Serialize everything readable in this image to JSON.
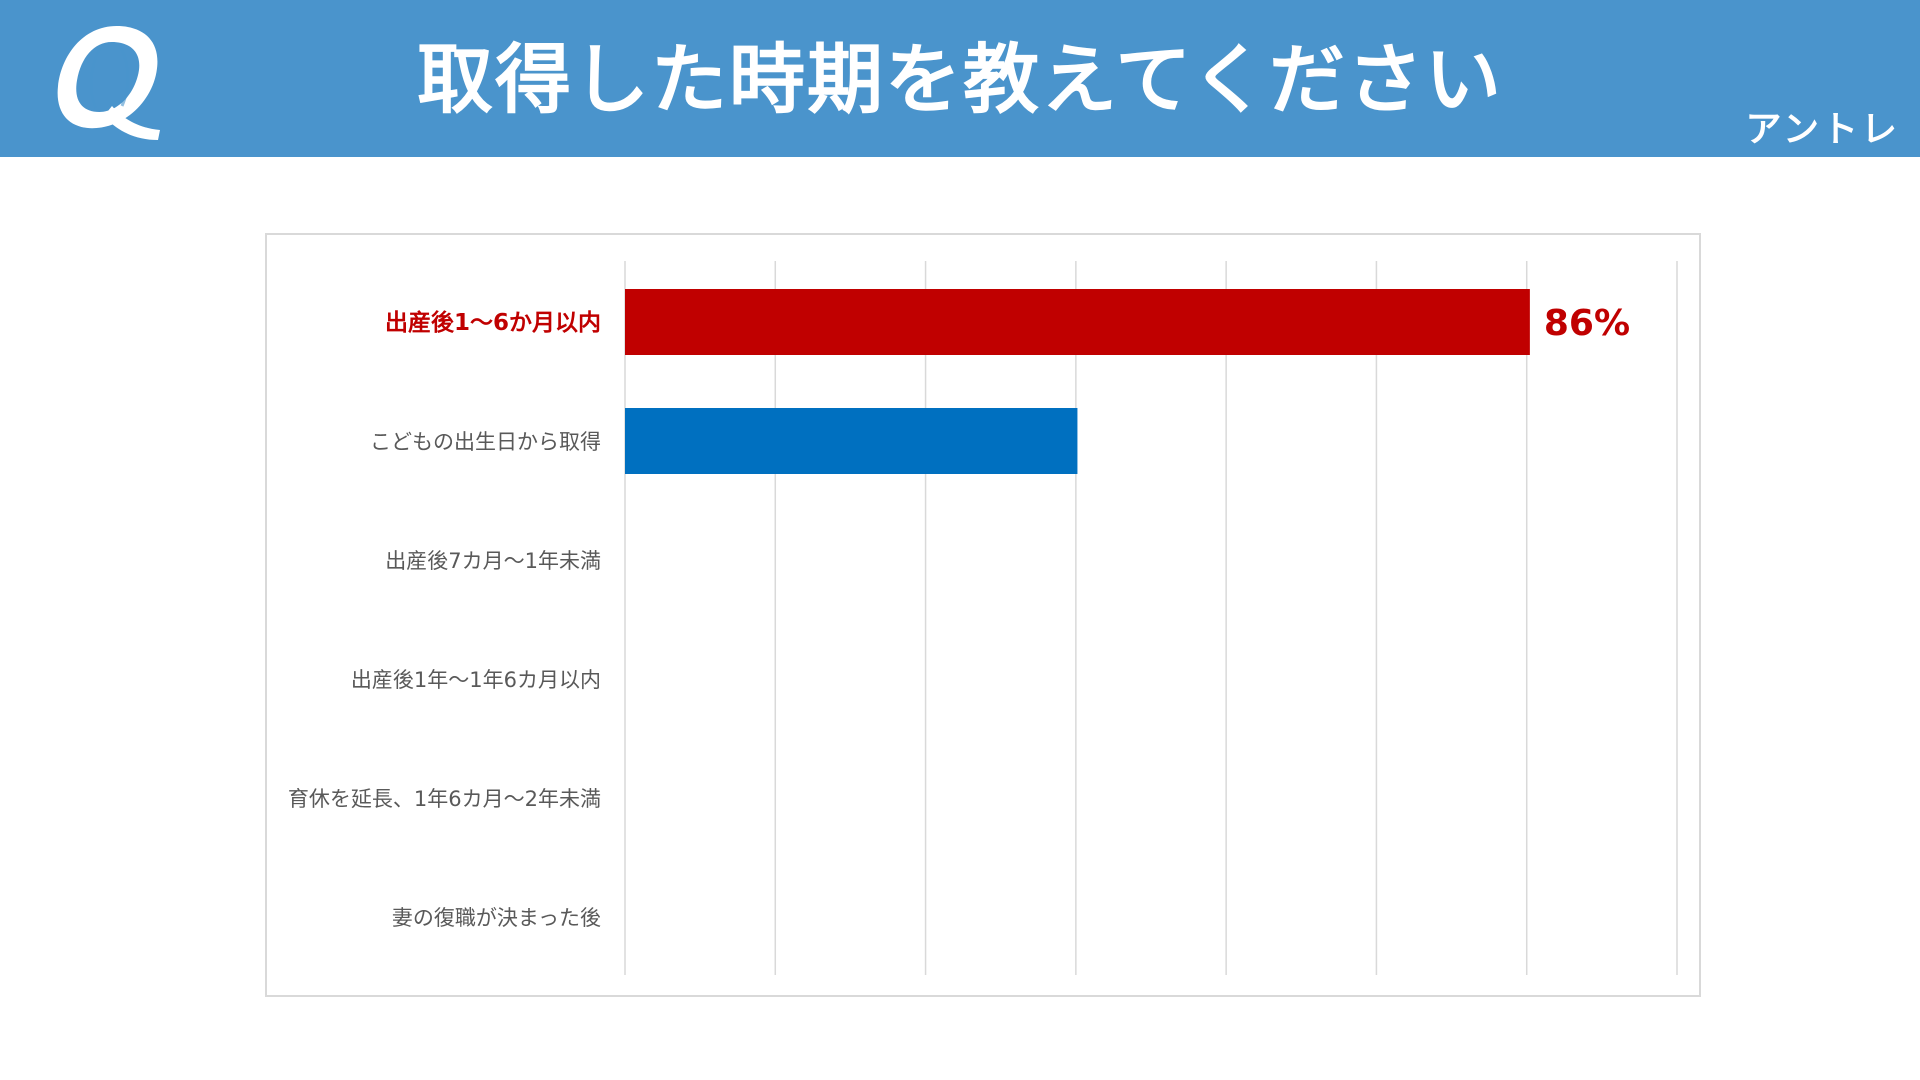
{
  "header": {
    "icon": "q-letter-icon",
    "title": "取得した時期を教えてください",
    "brand": "アントレ",
    "background_color": "#4a94cc"
  },
  "chart_data": {
    "type": "bar",
    "orientation": "horizontal",
    "categories": [
      "出産後1～6か月以内",
      "こどもの出生日から取得",
      "出産後7カ月～1年未満",
      "出産後1年～1年6カ月以内",
      "育休を延長、1年6カ月～2年未満",
      "妻の復職が決まった後"
    ],
    "values": [
      86,
      43,
      0,
      0,
      0,
      0
    ],
    "data_labels": [
      "86%",
      "",
      "",
      "",
      "",
      ""
    ],
    "bar_colors": [
      "#c00000",
      "#0070c0",
      "#0070c0",
      "#0070c0",
      "#0070c0",
      "#0070c0"
    ],
    "highlight_index": 0,
    "highlight_color": "#c00000",
    "xlim": [
      0,
      100
    ],
    "grid": true,
    "gridline_count": 8,
    "legend": "none",
    "title": "",
    "xlabel": "",
    "ylabel": ""
  }
}
